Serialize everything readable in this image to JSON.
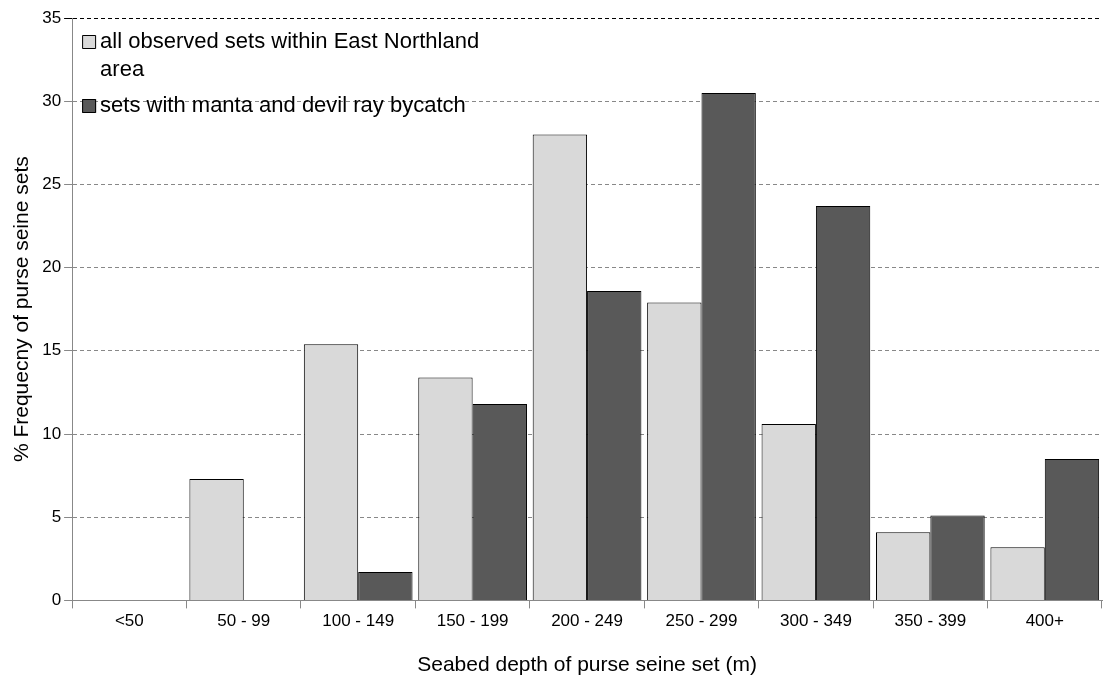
{
  "chart_data": {
    "type": "bar",
    "xlabel": "Seabed depth of purse seine set (m)",
    "ylabel": "% Frequecny of purse seine sets",
    "categories": [
      "<50",
      "50 - 99",
      "100 - 149",
      "150 - 199",
      "200 - 249",
      "250 - 299",
      "300 - 349",
      "350 - 399",
      "400+"
    ],
    "series": [
      {
        "name": "all observed sets within East Northland area",
        "color": "#d9d9d9",
        "values": [
          0,
          7.3,
          15.4,
          13.4,
          28.0,
          17.9,
          10.6,
          4.1,
          3.2
        ]
      },
      {
        "name": "sets with manta and devil ray bycatch",
        "color": "#595959",
        "values": [
          0,
          0,
          1.7,
          11.8,
          18.6,
          30.5,
          23.7,
          5.1,
          8.5
        ]
      }
    ],
    "ylim": [
      0,
      35
    ],
    "yticks": [
      0,
      5,
      10,
      15,
      20,
      25,
      30,
      35
    ],
    "grid": "y",
    "legend": "top left"
  }
}
